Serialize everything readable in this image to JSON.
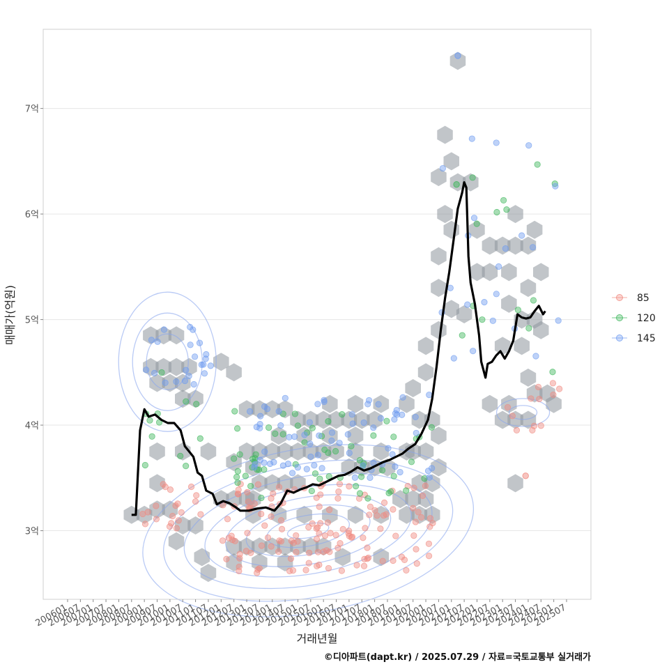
{
  "chart_data": {
    "type": "scatter",
    "xlabel": "거래년월",
    "ylabel": "매매가(억원)",
    "caption": "©디아파트(dapt.kr) / 2025.07.29 / 자료=국토교통부 실거래가",
    "x_ticks": [
      "200601",
      "200607",
      "200701",
      "200707",
      "200801",
      "200807",
      "200901",
      "200907",
      "201001",
      "201007",
      "201101",
      "201107",
      "201201",
      "201207",
      "201301",
      "201307",
      "201401",
      "201407",
      "201501",
      "201507",
      "201601",
      "201607",
      "201701",
      "201707",
      "201801",
      "201807",
      "201901",
      "201907",
      "202001",
      "202007",
      "202101",
      "202107",
      "202201",
      "202207",
      "202301",
      "202307",
      "202401",
      "202407",
      "202501",
      "202507"
    ],
    "y_ticks": [
      {
        "value": 3,
        "label": "3억"
      },
      {
        "value": 4,
        "label": "4억"
      },
      {
        "value": 5,
        "label": "5억"
      },
      {
        "value": 6,
        "label": "6억"
      },
      {
        "value": 7,
        "label": "7억"
      }
    ],
    "ylim": [
      2.35,
      7.75
    ],
    "grid": true,
    "legend_position": "right",
    "series_colors": {
      "85": "#f08a80",
      "120": "#3fb65c",
      "145": "#6f9cf0"
    },
    "legend": [
      {
        "name": "85",
        "color": "#f08a80"
      },
      {
        "name": "120",
        "color": "#3fb65c"
      },
      {
        "name": "145",
        "color": "#6f9cf0"
      }
    ],
    "trend_line": [
      [
        "2008-06",
        3.15
      ],
      [
        "2008-08",
        3.15
      ],
      [
        "2008-10",
        3.95
      ],
      [
        "2008-12",
        4.15
      ],
      [
        "2009-02",
        4.08
      ],
      [
        "2009-05",
        4.1
      ],
      [
        "2009-08",
        4.05
      ],
      [
        "2009-11",
        4.02
      ],
      [
        "2010-02",
        4.02
      ],
      [
        "2010-05",
        3.95
      ],
      [
        "2010-07",
        3.8
      ],
      [
        "2010-09",
        3.75
      ],
      [
        "2010-11",
        3.7
      ],
      [
        "2011-01",
        3.55
      ],
      [
        "2011-03",
        3.52
      ],
      [
        "2011-05",
        3.38
      ],
      [
        "2011-08",
        3.35
      ],
      [
        "2011-10",
        3.25
      ],
      [
        "2012-01",
        3.28
      ],
      [
        "2012-04",
        3.26
      ],
      [
        "2012-07",
        3.22
      ],
      [
        "2012-09",
        3.19
      ],
      [
        "2013-01",
        3.19
      ],
      [
        "2013-05",
        3.21
      ],
      [
        "2013-09",
        3.22
      ],
      [
        "2014-01",
        3.19
      ],
      [
        "2014-04",
        3.26
      ],
      [
        "2014-07",
        3.38
      ],
      [
        "2014-10",
        3.36
      ],
      [
        "2015-01",
        3.39
      ],
      [
        "2015-04",
        3.41
      ],
      [
        "2015-07",
        3.44
      ],
      [
        "2015-10",
        3.43
      ],
      [
        "2016-01",
        3.46
      ],
      [
        "2016-04",
        3.49
      ],
      [
        "2016-07",
        3.52
      ],
      [
        "2016-10",
        3.53
      ],
      [
        "2017-01",
        3.56
      ],
      [
        "2017-04",
        3.6
      ],
      [
        "2017-07",
        3.57
      ],
      [
        "2017-10",
        3.59
      ],
      [
        "2018-01",
        3.62
      ],
      [
        "2018-04",
        3.65
      ],
      [
        "2018-07",
        3.67
      ],
      [
        "2018-10",
        3.7
      ],
      [
        "2019-01",
        3.73
      ],
      [
        "2019-04",
        3.78
      ],
      [
        "2019-07",
        3.82
      ],
      [
        "2019-10",
        3.92
      ],
      [
        "2020-01",
        4.05
      ],
      [
        "2020-03",
        4.25
      ],
      [
        "2020-05",
        4.55
      ],
      [
        "2020-07",
        4.9
      ],
      [
        "2020-09",
        5.2
      ],
      [
        "2020-11",
        5.45
      ],
      [
        "2021-01",
        5.75
      ],
      [
        "2021-03",
        6.05
      ],
      [
        "2021-05",
        6.2
      ],
      [
        "2021-06",
        6.3
      ],
      [
        "2021-07",
        6.25
      ],
      [
        "2021-08",
        5.6
      ],
      [
        "2021-09",
        5.35
      ],
      [
        "2021-11",
        5.15
      ],
      [
        "2022-01",
        4.85
      ],
      [
        "2022-02",
        4.6
      ],
      [
        "2022-04",
        4.45
      ],
      [
        "2022-05",
        4.58
      ],
      [
        "2022-07",
        4.6
      ],
      [
        "2022-09",
        4.66
      ],
      [
        "2022-11",
        4.7
      ],
      [
        "2023-01",
        4.63
      ],
      [
        "2023-03",
        4.7
      ],
      [
        "2023-05",
        4.8
      ],
      [
        "2023-07",
        5.05
      ],
      [
        "2023-09",
        5.02
      ],
      [
        "2023-11",
        5.01
      ],
      [
        "2024-01",
        5.02
      ],
      [
        "2024-03",
        5.08
      ],
      [
        "2024-05",
        5.13
      ],
      [
        "2024-07",
        5.05
      ],
      [
        "2024-08",
        5.08
      ]
    ],
    "hexbins": [
      [
        "2009-03",
        4.85
      ],
      [
        "2009-09",
        4.85
      ],
      [
        "2010-03",
        4.85
      ],
      [
        "2009-03",
        4.55
      ],
      [
        "2009-09",
        4.55
      ],
      [
        "2010-03",
        4.55
      ],
      [
        "2010-09",
        4.55
      ],
      [
        "2009-06",
        4.4
      ],
      [
        "2010-00",
        4.4
      ],
      [
        "2010-06",
        4.4
      ],
      [
        "2010-06",
        4.25
      ],
      [
        "2011-00",
        4.25
      ],
      [
        "2009-06",
        3.75
      ],
      [
        "2010-06",
        3.75
      ],
      [
        "2011-06",
        3.75
      ],
      [
        "2009-06",
        3.45
      ],
      [
        "2012-06",
        3.65
      ],
      [
        "2013-03",
        3.6
      ],
      [
        "2012-00",
        4.6
      ],
      [
        "2012-06",
        4.5
      ],
      [
        "2013-00",
        4.15
      ],
      [
        "2013-06",
        4.15
      ],
      [
        "2014-00",
        4.15
      ],
      [
        "2014-06",
        4.15
      ],
      [
        "2008-06",
        3.15
      ],
      [
        "2009-00",
        3.15
      ],
      [
        "2009-06",
        3.2
      ],
      [
        "2010-00",
        3.2
      ],
      [
        "2010-06",
        3.05
      ],
      [
        "2011-00",
        3.05
      ],
      [
        "2010-03",
        2.9
      ],
      [
        "2011-03",
        2.75
      ],
      [
        "2011-06",
        2.6
      ],
      [
        "2012-00",
        3.3
      ],
      [
        "2012-06",
        3.3
      ],
      [
        "2013-00",
        3.3
      ],
      [
        "2013-06",
        3.45
      ],
      [
        "2014-00",
        3.45
      ],
      [
        "2014-06",
        3.45
      ],
      [
        "2015-00",
        3.45
      ],
      [
        "2013-00",
        3.75
      ],
      [
        "2013-06",
        3.75
      ],
      [
        "2014-00",
        3.75
      ],
      [
        "2014-06",
        3.75
      ],
      [
        "2015-00",
        3.75
      ],
      [
        "2015-06",
        3.75
      ],
      [
        "2016-00",
        3.75
      ],
      [
        "2016-06",
        3.75
      ],
      [
        "2014-03",
        3.9
      ],
      [
        "2015-03",
        3.9
      ],
      [
        "2016-03",
        3.9
      ],
      [
        "2017-03",
        3.9
      ],
      [
        "2015-00",
        4.05
      ],
      [
        "2015-06",
        4.05
      ],
      [
        "2016-00",
        4.05
      ],
      [
        "2016-06",
        4.05
      ],
      [
        "2017-00",
        4.05
      ],
      [
        "2017-06",
        4.05
      ],
      [
        "2018-00",
        4.05
      ],
      [
        "2016-03",
        4.2
      ],
      [
        "2017-03",
        4.2
      ],
      [
        "2018-03",
        4.2
      ],
      [
        "2019-03",
        4.2
      ],
      [
        "2017-00",
        3.6
      ],
      [
        "2017-06",
        3.6
      ],
      [
        "2018-00",
        3.6
      ],
      [
        "2018-06",
        3.6
      ],
      [
        "2017-03",
        3.75
      ],
      [
        "2018-03",
        3.75
      ],
      [
        "2019-03",
        3.75
      ],
      [
        "2013-03",
        3.3
      ],
      [
        "2013-03",
        3.15
      ],
      [
        "2014-03",
        3.15
      ],
      [
        "2015-03",
        3.15
      ],
      [
        "2016-03",
        3.15
      ],
      [
        "2017-03",
        3.15
      ],
      [
        "2018-03",
        3.15
      ],
      [
        "2019-03",
        3.15
      ],
      [
        "2019-09",
        3.15
      ],
      [
        "2020-03",
        3.15
      ],
      [
        "2012-06",
        2.85
      ],
      [
        "2013-00",
        2.85
      ],
      [
        "2013-06",
        2.85
      ],
      [
        "2014-00",
        2.85
      ],
      [
        "2014-06",
        2.85
      ],
      [
        "2015-00",
        2.85
      ],
      [
        "2015-06",
        2.85
      ],
      [
        "2016-00",
        2.85
      ],
      [
        "2012-06",
        2.7
      ],
      [
        "2013-06",
        2.7
      ],
      [
        "2014-06",
        2.7
      ],
      [
        "2016-09",
        2.75
      ],
      [
        "2018-03",
        2.75
      ],
      [
        "2019-00",
        3.3
      ],
      [
        "2019-06",
        3.3
      ],
      [
        "2020-00",
        3.3
      ],
      [
        "2019-09",
        3.45
      ],
      [
        "2020-03",
        3.45
      ],
      [
        "2020-06",
        3.6
      ],
      [
        "2019-06",
        3.75
      ],
      [
        "2020-00",
        3.75
      ],
      [
        "2020-06",
        3.9
      ],
      [
        "2019-09",
        4.05
      ],
      [
        "2020-03",
        4.05
      ],
      [
        "2019-06",
        4.35
      ],
      [
        "2020-00",
        4.5
      ],
      [
        "2020-00",
        4.75
      ],
      [
        "2020-06",
        4.9
      ],
      [
        "2021-00",
        5.1
      ],
      [
        "2021-06",
        5.05
      ],
      [
        "2020-06",
        5.3
      ],
      [
        "2020-06",
        5.6
      ],
      [
        "2021-00",
        5.85
      ],
      [
        "2020-09",
        6.0
      ],
      [
        "2020-06",
        6.35
      ],
      [
        "2021-03",
        6.3
      ],
      [
        "2021-09",
        6.3
      ],
      [
        "2021-00",
        6.5
      ],
      [
        "2020-09",
        6.75
      ],
      [
        "2021-03",
        7.45
      ],
      [
        "2022-00",
        5.85
      ],
      [
        "2022-06",
        5.7
      ],
      [
        "2023-00",
        5.7
      ],
      [
        "2023-06",
        5.7
      ],
      [
        "2024-00",
        5.7
      ],
      [
        "2024-03",
        5.85
      ],
      [
        "2023-06",
        6.0
      ],
      [
        "2022-00",
        5.45
      ],
      [
        "2022-06",
        5.45
      ],
      [
        "2023-03",
        5.45
      ],
      [
        "2024-00",
        5.3
      ],
      [
        "2024-06",
        5.45
      ],
      [
        "2023-03",
        5.15
      ],
      [
        "2023-09",
        5.0
      ],
      [
        "2024-03",
        5.0
      ],
      [
        "2024-06",
        4.9
      ],
      [
        "2023-09",
        4.75
      ],
      [
        "2023-00",
        4.75
      ],
      [
        "2024-00",
        4.45
      ],
      [
        "2024-03",
        4.3
      ],
      [
        "2024-09",
        4.3
      ],
      [
        "2025-00",
        4.2
      ],
      [
        "2022-06",
        4.2
      ],
      [
        "2023-00",
        4.05
      ],
      [
        "2023-06",
        4.05
      ],
      [
        "2024-00",
        4.05
      ],
      [
        "2023-03",
        4.2
      ],
      [
        "2023-06",
        3.45
      ]
    ]
  }
}
